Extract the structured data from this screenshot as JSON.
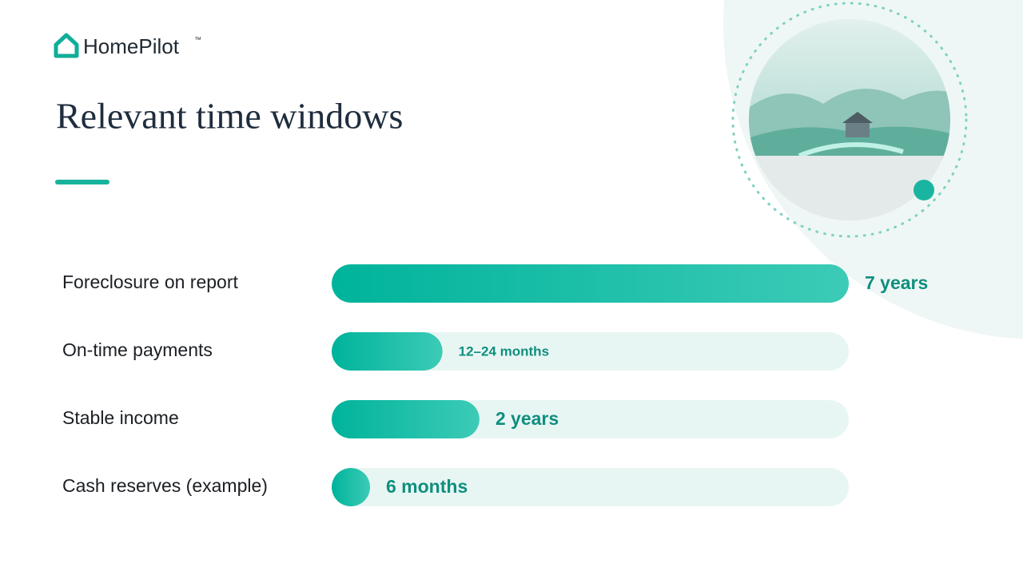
{
  "brand": "HomePilot",
  "trademark": "™",
  "chart_data": {
    "type": "bar",
    "orientation": "horizontal",
    "title": "Relevant time windows",
    "categories": [
      "Foreclosure on report",
      "On-time payments",
      "Stable income",
      "Cash reserves (example)"
    ],
    "values": [
      84,
      18,
      24,
      6
    ],
    "value_labels": [
      "7 years",
      "12–24 months",
      "2 years",
      "6 months"
    ],
    "xlim": [
      0,
      84
    ],
    "color": "#00b39b",
    "track_color": "#e8f6f3"
  }
}
